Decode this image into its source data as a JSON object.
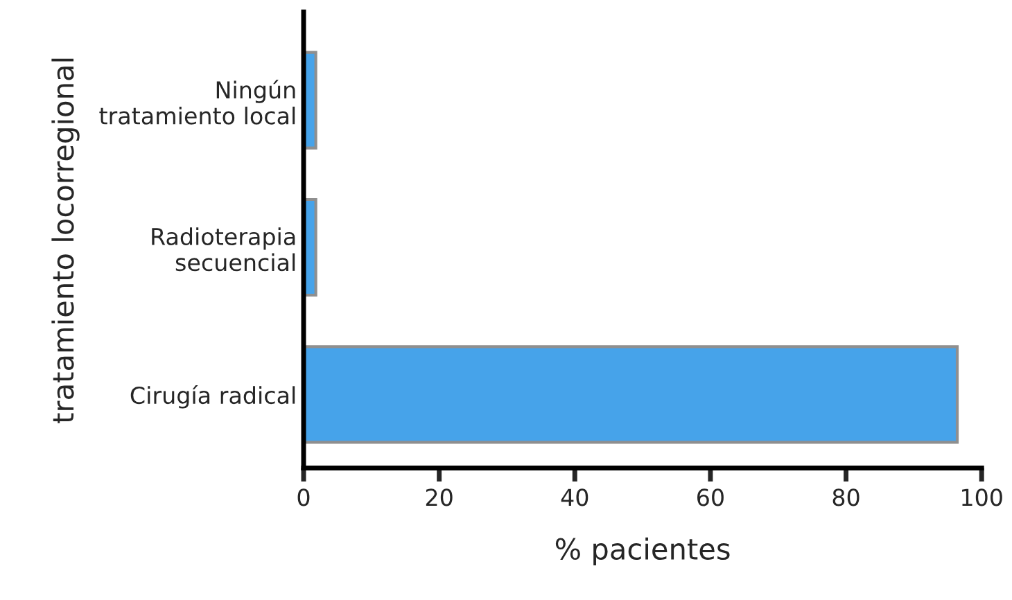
{
  "chart_data": {
    "type": "bar",
    "orientation": "horizontal",
    "categories": [
      "Ningún\ntratamiento local",
      "Radioterapia\nsecuencial",
      "Cirugía radical"
    ],
    "values": [
      1.8,
      1.8,
      96.4
    ],
    "color": "#46a3ea",
    "xlabel": "% pacientes",
    "ylabel": "tratamiento locorregional",
    "xlim": [
      0,
      100
    ],
    "xticks": [
      0,
      20,
      40,
      60,
      80,
      100
    ],
    "grid": false
  }
}
